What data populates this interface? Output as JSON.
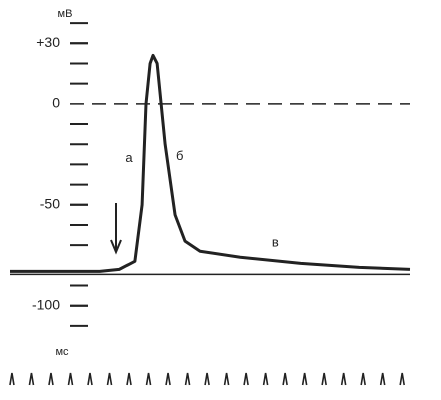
{
  "chart_data": {
    "type": "line",
    "y_unit_label": "мВ",
    "x_unit_label": "мс",
    "x": [
      -0.1,
      4.5,
      5.5,
      6.3,
      6.67,
      6.87,
      7.08,
      7.23,
      7.44,
      7.85,
      8.36,
      8.87,
      9.64,
      11.7,
      14.8,
      17.8,
      20.4
    ],
    "series": [
      {
        "name": null,
        "color": "#222222",
        "values": [
          -83,
          -83,
          -82,
          -78,
          -50,
          0,
          20,
          24,
          20,
          -20,
          -55,
          -68,
          -73,
          -76,
          -79,
          -81,
          -82
        ]
      }
    ],
    "xlim": [
      -0.1,
      20.4
    ],
    "xticks": [
      0,
      1,
      2,
      3,
      4,
      5,
      6,
      7,
      8,
      9,
      10,
      11,
      12,
      13,
      14,
      15,
      16,
      17,
      18,
      19,
      20
    ],
    "ylim": [
      -115,
      45
    ],
    "yticks": [
      {
        "value": 30,
        "label": "+30"
      },
      0,
      -50,
      -100
    ],
    "yticks_minor": [
      40,
      30,
      20,
      10,
      -10,
      -20,
      -30,
      -40,
      -50,
      -60,
      -70,
      -90,
      -100,
      -110
    ],
    "reference_line": -83,
    "annotations": [
      {
        "text": "а",
        "x": 6.0,
        "y": -27
      },
      {
        "text": "б",
        "x": 8.6,
        "y": -26
      },
      {
        "text": "в",
        "x": 13.5,
        "y": -69
      }
    ]
  }
}
